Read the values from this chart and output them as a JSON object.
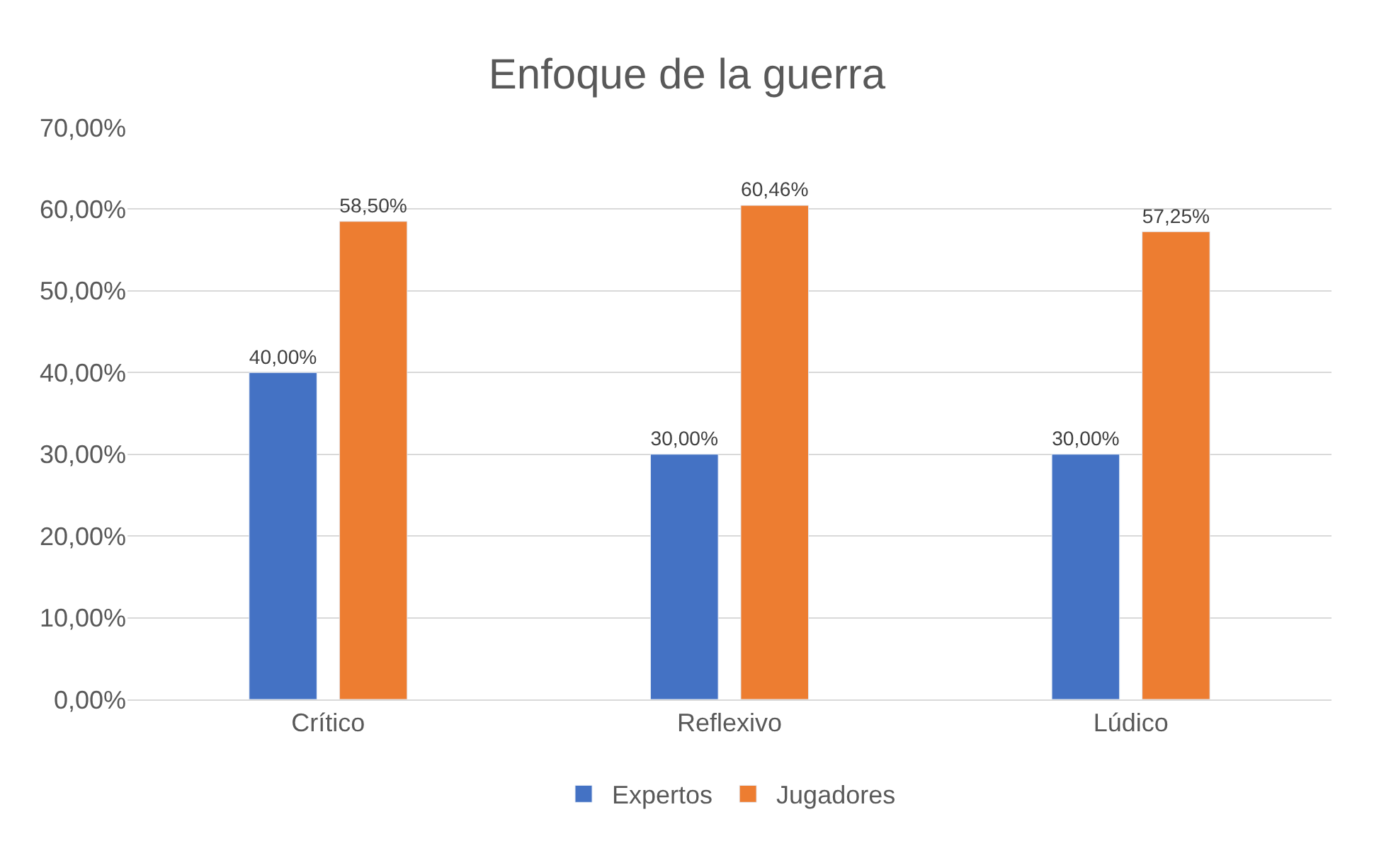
{
  "chart_data": {
    "type": "bar",
    "title": "Enfoque de la guerra",
    "categories": [
      "Crítico",
      "Reflexivo",
      "Lúdico"
    ],
    "series": [
      {
        "name": "Expertos",
        "color": "#4472c4",
        "values": [
          40,
          30,
          30
        ],
        "value_labels": [
          "40,00%",
          "30,00%",
          "30,00%"
        ]
      },
      {
        "name": "Jugadores",
        "color": "#ed7d31",
        "values": [
          58.5,
          60.46,
          57.25
        ],
        "value_labels": [
          "58,50%",
          "60,46%",
          "57,25%"
        ]
      }
    ],
    "ylim": [
      0,
      70
    ],
    "yticks": [
      {
        "value": 0,
        "label": "0,00%"
      },
      {
        "value": 10,
        "label": "10,00%"
      },
      {
        "value": 20,
        "label": "20,00%"
      },
      {
        "value": 30,
        "label": "30,00%"
      },
      {
        "value": 40,
        "label": "40,00%"
      },
      {
        "value": 50,
        "label": "50,00%"
      },
      {
        "value": 60,
        "label": "60,00%"
      },
      {
        "value": 70,
        "label": "70,00%"
      }
    ],
    "grid": "y",
    "legend": "bottom"
  }
}
